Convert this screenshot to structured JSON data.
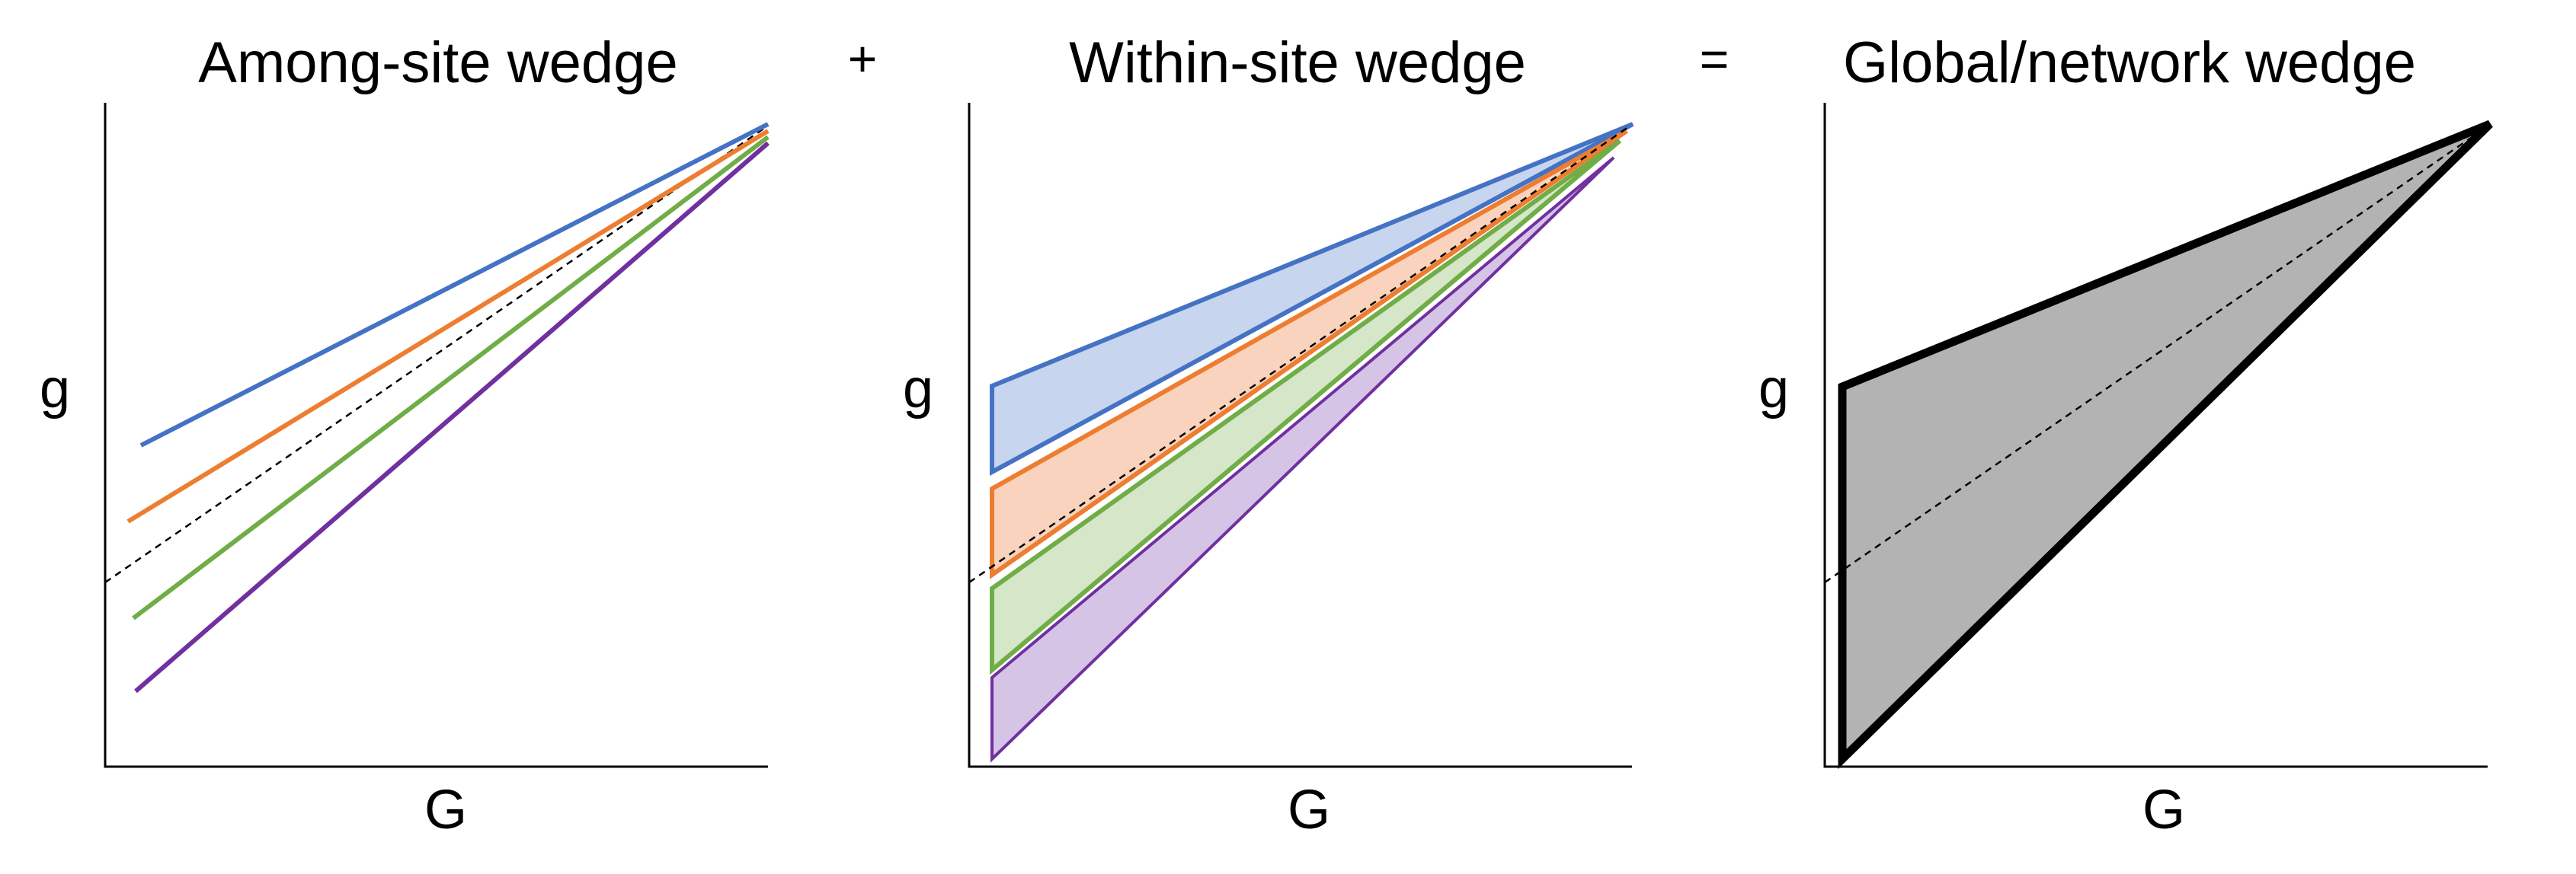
{
  "colors": {
    "blue": "#4472C4",
    "orange": "#ED7D31",
    "green": "#70AD47",
    "purple": "#7030A0",
    "blue_fill": "#C7D5EE",
    "orange_fill": "#F9D3BD",
    "green_fill": "#D5E6C9",
    "purple_fill": "#D6C4E6",
    "global_fill": "#B3B3B3"
  },
  "operators": {
    "plus": "+",
    "equals": "="
  },
  "panels": [
    {
      "title": "Among-site wedge",
      "x_label": "G",
      "y_label": "g"
    },
    {
      "title": "Within-site wedge",
      "x_label": "G",
      "y_label": "g"
    },
    {
      "title": "Global/network wedge",
      "x_label": "G",
      "y_label": "g"
    }
  ]
}
